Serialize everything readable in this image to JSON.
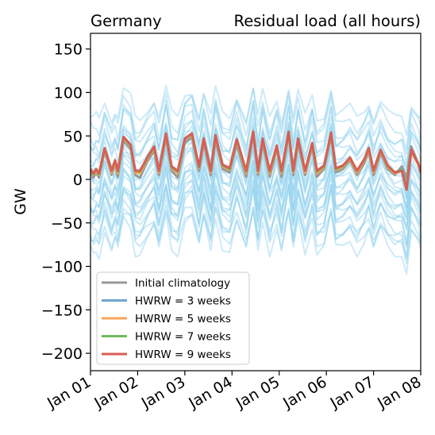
{
  "chart_data": {
    "type": "line",
    "title_left": "Germany",
    "title_right": "Residual load (all hours)",
    "ylabel": "GW",
    "xlabel": "",
    "ylim": [
      -220,
      168
    ],
    "xlim": [
      0,
      7
    ],
    "yticks": [
      150,
      100,
      50,
      0,
      -50,
      -100,
      -150,
      -200
    ],
    "ytick_labels": [
      "150",
      "100",
      "50",
      "0",
      "−50",
      "−100",
      "−150",
      "−200"
    ],
    "xtick_labels": [
      "Jan 01",
      "Jan 02",
      "Jan 03",
      "Jan 04",
      "Jan 05",
      "Jan 06",
      "Jan 07",
      "Jan 08"
    ],
    "grid": false,
    "legend_position": "lower-left",
    "ensemble": {
      "description": "Light-blue background ensemble members",
      "color": "#8fd0ee",
      "member_offsets": [
        82,
        72,
        62,
        56,
        50,
        44,
        38,
        32,
        26,
        22,
        18,
        14,
        10,
        6,
        2,
        -4,
        -10,
        -14,
        -18,
        -22,
        -26,
        -30,
        -36,
        -42,
        -48,
        -54,
        -60,
        -68
      ]
    },
    "series": [
      {
        "name": "Initial climatology",
        "color": "#999999",
        "x": [
          0,
          0.06,
          0.12,
          0.18,
          0.3,
          0.45,
          0.52,
          0.58,
          0.7,
          0.85,
          0.95,
          1.05,
          1.2,
          1.35,
          1.45,
          1.6,
          1.72,
          1.85,
          2.0,
          2.15,
          2.3,
          2.4,
          2.55,
          2.65,
          2.8,
          2.95,
          3.1,
          3.3,
          3.45,
          3.55,
          3.65,
          3.8,
          3.95,
          4.05,
          4.2,
          4.3,
          4.4,
          4.55,
          4.7,
          4.8,
          4.95,
          5.1,
          5.2,
          5.35,
          5.5,
          5.65,
          5.8,
          5.9,
          6.0,
          6.15,
          6.3,
          6.45,
          6.6,
          6.7,
          6.8,
          6.95,
          7.0
        ],
        "values": [
          10,
          2,
          8,
          2,
          32,
          5,
          18,
          3,
          44,
          35,
          5,
          2,
          20,
          33,
          5,
          48,
          10,
          2,
          42,
          48,
          10,
          42,
          5,
          45,
          12,
          8,
          40,
          3,
          52,
          5,
          42,
          3,
          35,
          3,
          52,
          5,
          42,
          5,
          38,
          3,
          12,
          50,
          8,
          12,
          22,
          5,
          18,
          32,
          5,
          30,
          12,
          5,
          15,
          2,
          38,
          18,
          10
        ]
      },
      {
        "name": "HWRW = 3 weeks",
        "color": "#6fa5cf",
        "x": [
          0,
          0.06,
          0.12,
          0.18,
          0.3,
          0.45,
          0.52,
          0.58,
          0.7,
          0.85,
          0.95,
          1.05,
          1.2,
          1.35,
          1.45,
          1.6,
          1.72,
          1.85,
          2.0,
          2.15,
          2.3,
          2.4,
          2.55,
          2.65,
          2.8,
          2.95,
          3.1,
          3.3,
          3.45,
          3.55,
          3.65,
          3.8,
          3.95,
          4.05,
          4.2,
          4.3,
          4.4,
          4.55,
          4.7,
          4.8,
          4.95,
          5.1,
          5.2,
          5.35,
          5.5,
          5.65,
          5.8,
          5.9,
          6.0,
          6.15,
          6.3,
          6.45,
          6.6,
          6.7,
          6.8,
          6.95,
          7.0
        ],
        "values": [
          12,
          6,
          12,
          6,
          34,
          9,
          21,
          8,
          46,
          37,
          9,
          8,
          24,
          36,
          9,
          50,
          14,
          8,
          45,
          50,
          14,
          45,
          9,
          48,
          16,
          12,
          43,
          8,
          54,
          9,
          45,
          8,
          38,
          8,
          54,
          9,
          45,
          9,
          40,
          8,
          15,
          52,
          12,
          15,
          25,
          9,
          22,
          35,
          9,
          33,
          15,
          8,
          12,
          -8,
          33,
          18,
          8
        ]
      },
      {
        "name": "HWRW = 5 weeks",
        "color": "#f5a45a",
        "x": [
          0,
          0.06,
          0.12,
          0.18,
          0.3,
          0.45,
          0.52,
          0.58,
          0.7,
          0.85,
          0.95,
          1.05,
          1.2,
          1.35,
          1.45,
          1.6,
          1.72,
          1.85,
          2.0,
          2.15,
          2.3,
          2.4,
          2.55,
          2.65,
          2.8,
          2.95,
          3.1,
          3.3,
          3.45,
          3.55,
          3.65,
          3.8,
          3.95,
          4.05,
          4.2,
          4.3,
          4.4,
          4.55,
          4.7,
          4.8,
          4.95,
          5.1,
          5.2,
          5.35,
          5.5,
          5.65,
          5.8,
          5.9,
          6.0,
          6.15,
          6.3,
          6.45,
          6.6,
          6.7,
          6.8,
          6.95,
          7.0
        ],
        "values": [
          11,
          5,
          11,
          5,
          35,
          8,
          20,
          7,
          47,
          38,
          8,
          7,
          23,
          36,
          8,
          51,
          13,
          7,
          46,
          51,
          13,
          46,
          8,
          49,
          15,
          11,
          44,
          7,
          55,
          8,
          46,
          7,
          38,
          7,
          55,
          8,
          46,
          8,
          41,
          7,
          14,
          53,
          11,
          14,
          24,
          8,
          21,
          35,
          8,
          33,
          14,
          7,
          10,
          -10,
          32,
          17,
          7
        ]
      },
      {
        "name": "HWRW = 7 weeks",
        "color": "#6dbb5d",
        "x": [
          0,
          0.06,
          0.12,
          0.18,
          0.3,
          0.45,
          0.52,
          0.58,
          0.7,
          0.85,
          0.95,
          1.05,
          1.2,
          1.35,
          1.45,
          1.6,
          1.72,
          1.85,
          2.0,
          2.15,
          2.3,
          2.4,
          2.55,
          2.65,
          2.8,
          2.95,
          3.1,
          3.3,
          3.45,
          3.55,
          3.65,
          3.8,
          3.95,
          4.05,
          4.2,
          4.3,
          4.4,
          4.55,
          4.7,
          4.8,
          4.95,
          5.1,
          5.2,
          5.35,
          5.5,
          5.65,
          5.8,
          5.9,
          6.0,
          6.15,
          6.3,
          6.45,
          6.6,
          6.7,
          6.8,
          6.95,
          7.0
        ],
        "values": [
          12,
          6,
          12,
          6,
          36,
          10,
          22,
          9,
          48,
          39,
          10,
          9,
          24,
          37,
          10,
          52,
          14,
          9,
          47,
          52,
          14,
          47,
          10,
          50,
          16,
          12,
          45,
          9,
          55,
          10,
          46,
          9,
          38,
          9,
          55,
          10,
          46,
          10,
          41,
          9,
          15,
          53,
          12,
          15,
          25,
          10,
          22,
          36,
          10,
          34,
          15,
          8,
          11,
          -10,
          33,
          18,
          8
        ]
      },
      {
        "name": "HWRW = 9 weeks",
        "color": "#d65f55",
        "x": [
          0,
          0.06,
          0.12,
          0.18,
          0.3,
          0.45,
          0.52,
          0.58,
          0.7,
          0.85,
          0.95,
          1.05,
          1.2,
          1.35,
          1.45,
          1.6,
          1.72,
          1.85,
          2.0,
          2.15,
          2.3,
          2.4,
          2.55,
          2.65,
          2.8,
          2.95,
          3.1,
          3.3,
          3.45,
          3.55,
          3.65,
          3.8,
          3.95,
          4.05,
          4.2,
          4.3,
          4.4,
          4.55,
          4.7,
          4.8,
          4.95,
          5.1,
          5.2,
          5.35,
          5.5,
          5.65,
          5.8,
          5.9,
          6.0,
          6.15,
          6.3,
          6.45,
          6.6,
          6.7,
          6.8,
          6.95,
          7.0
        ],
        "values": [
          12,
          7,
          12,
          7,
          36,
          10,
          22,
          10,
          49,
          40,
          10,
          10,
          25,
          38,
          10,
          53,
          15,
          10,
          47,
          53,
          15,
          47,
          10,
          51,
          17,
          13,
          46,
          10,
          55,
          10,
          47,
          10,
          39,
          10,
          55,
          10,
          47,
          10,
          42,
          10,
          16,
          54,
          13,
          16,
          25,
          10,
          23,
          36,
          10,
          34,
          16,
          8,
          10,
          -12,
          34,
          18,
          8
        ]
      }
    ]
  }
}
